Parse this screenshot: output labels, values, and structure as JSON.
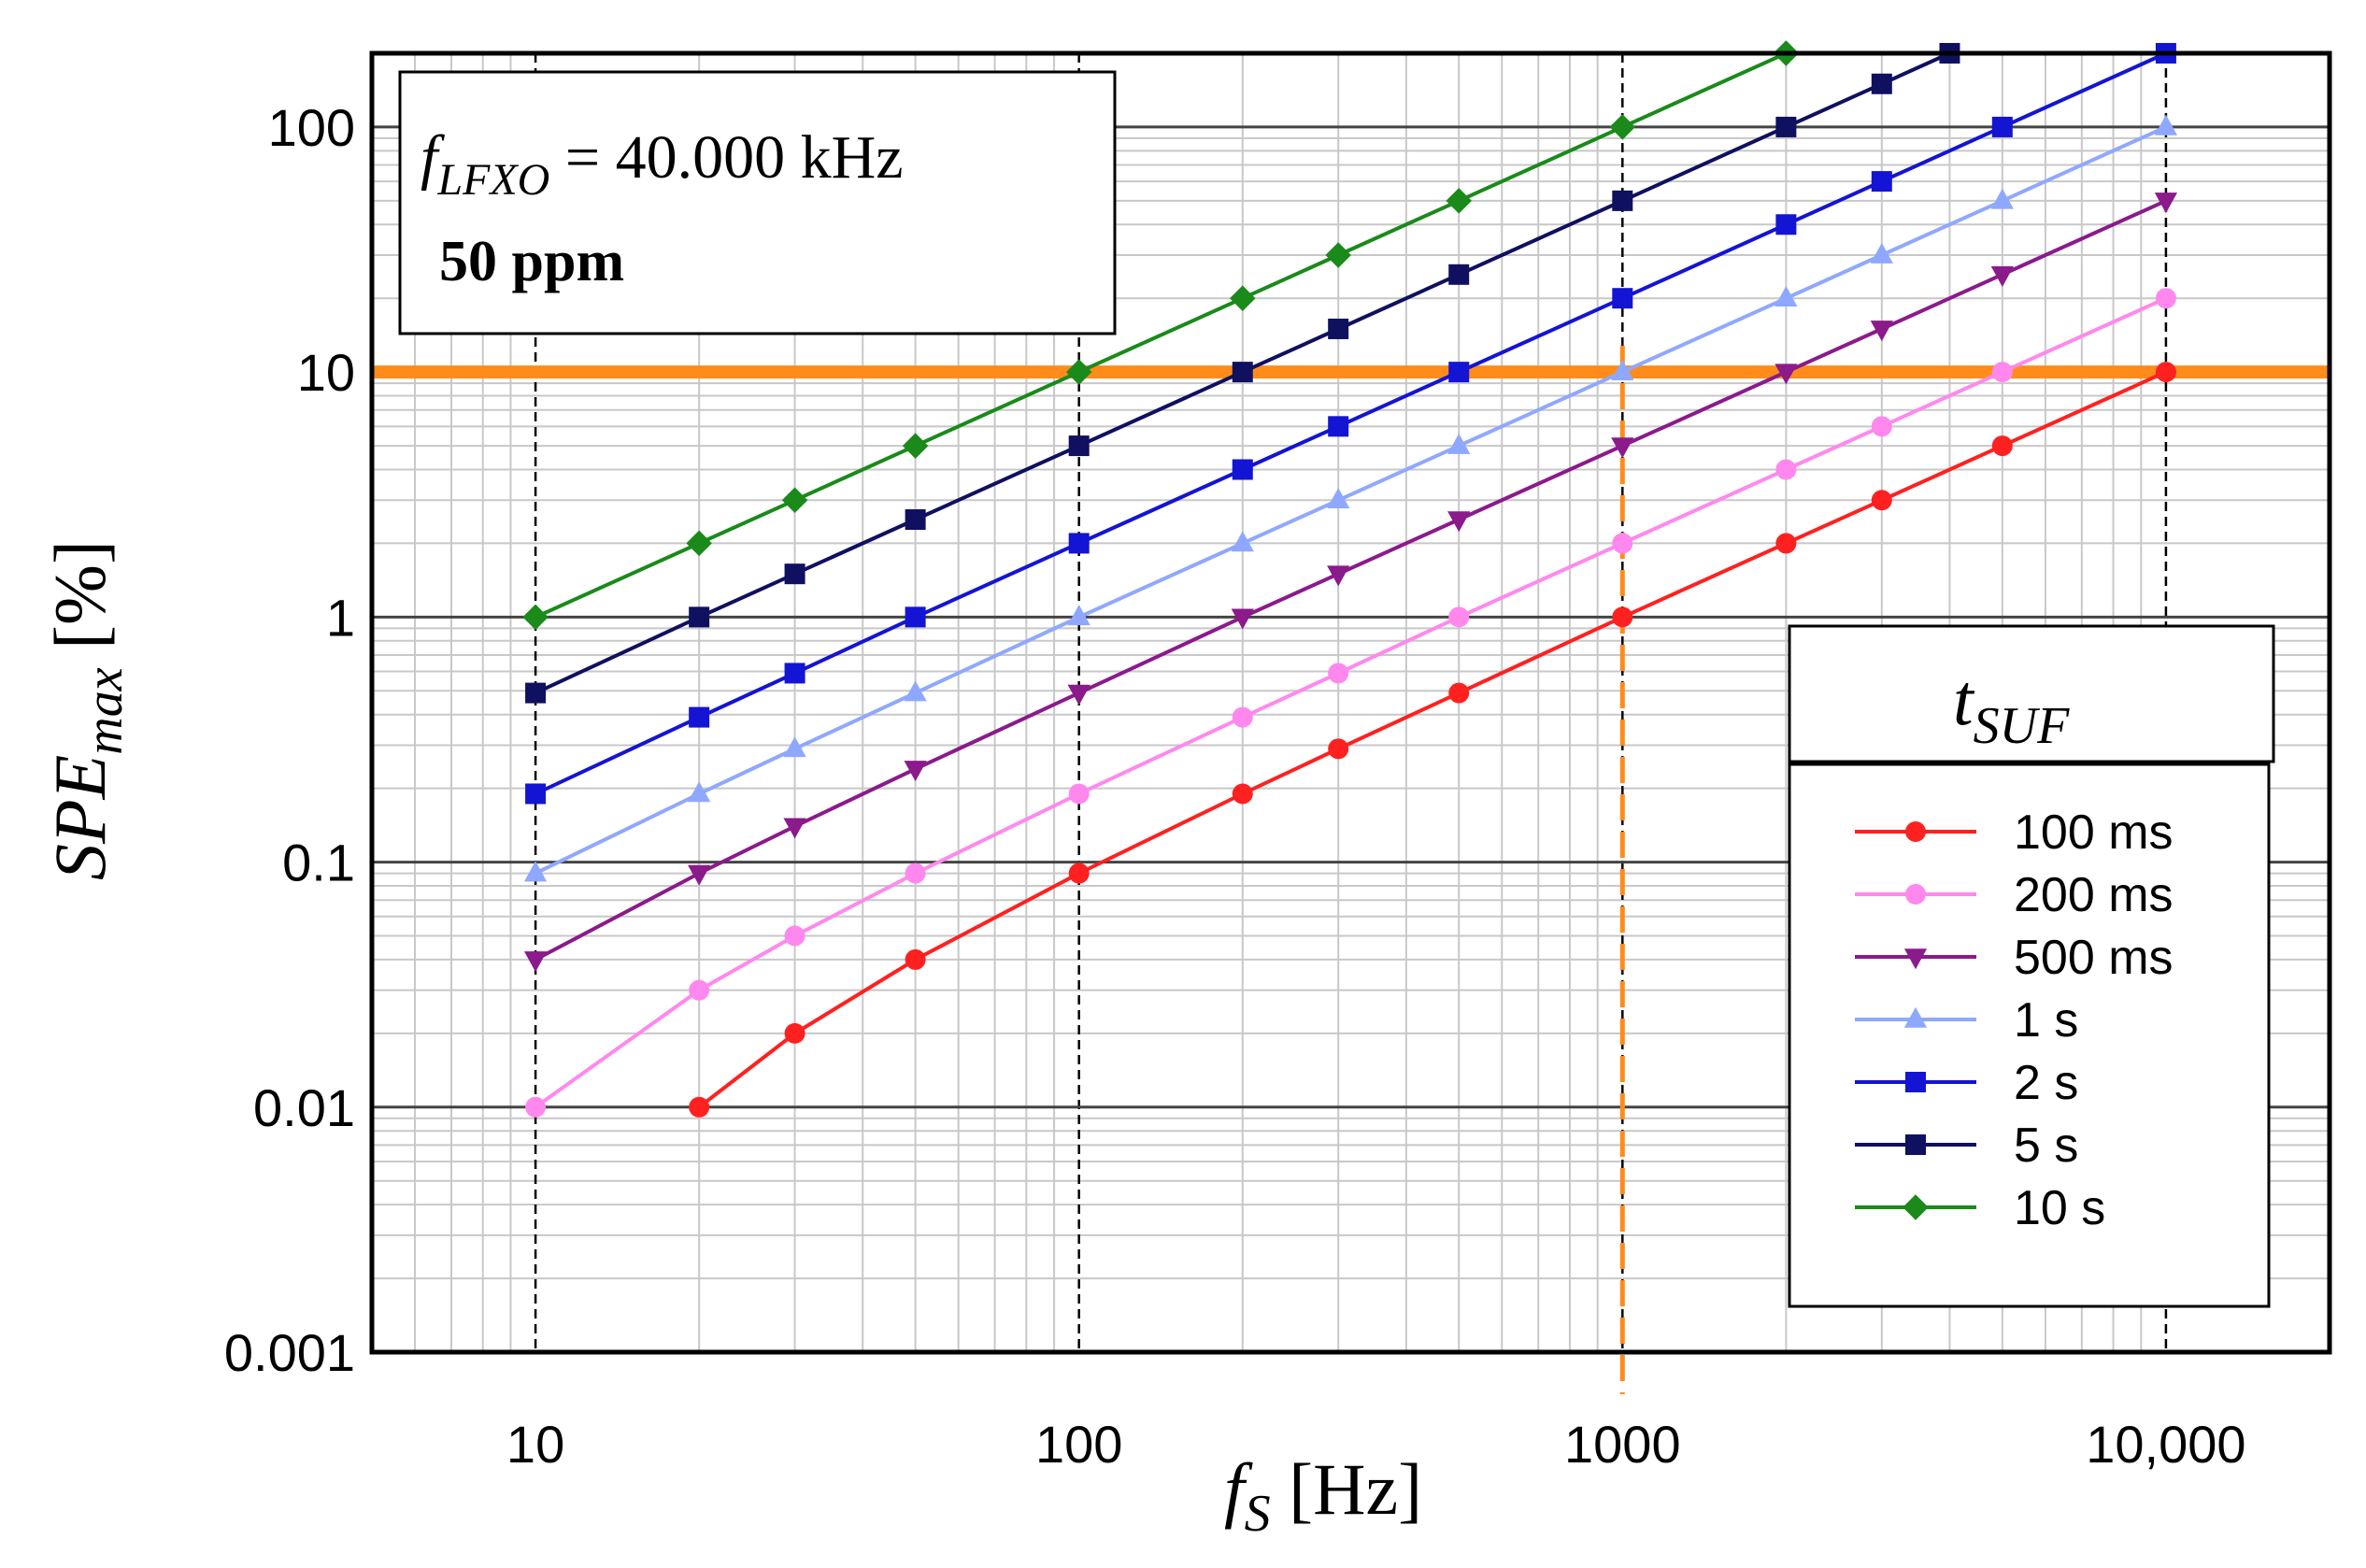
{
  "chart_data": {
    "type": "line",
    "xscale": "log",
    "yscale": "log",
    "xlim": [
      5,
      20000
    ],
    "ylim": [
      0.001,
      200
    ],
    "xticks": [
      10,
      100,
      1000,
      10000
    ],
    "xtick_labels": [
      "10",
      "100",
      "1000",
      "10,000"
    ],
    "yticks": [
      0.001,
      0.01,
      0.1,
      1,
      10,
      100
    ],
    "ytick_labels": [
      "0.001",
      "0.01",
      "0.1",
      "1",
      "10",
      "100"
    ],
    "grid": true,
    "xlabel": {
      "main": "f",
      "sub": "S",
      "unit": " [Hz]"
    },
    "ylabel": {
      "main": "SPE",
      "sub": "max",
      "unit": " [%]"
    },
    "annotation": {
      "line1_var": "f",
      "line1_sub": "LFXO",
      "line1_value": " = 40.000 kHz",
      "line2": "50 ppm"
    },
    "reference_lines": [
      {
        "orientation": "horizontal",
        "value": 10,
        "color": "#ff8c1a",
        "style": "solid"
      },
      {
        "orientation": "vertical",
        "value": 1000,
        "color": "#ff8c1a",
        "style": "dashed"
      }
    ],
    "legend": {
      "title_var": "t",
      "title_sub": "SUF",
      "position": "right"
    },
    "series": [
      {
        "name": "100 ms",
        "color": "#ff2020",
        "marker": "circle",
        "x": [
          20,
          30,
          50,
          100,
          200,
          300,
          500,
          1000,
          2000,
          3000,
          5000,
          10000
        ],
        "y": [
          0.01,
          0.02,
          0.04,
          0.09,
          0.19,
          0.29,
          0.49,
          1,
          2,
          3,
          5,
          10
        ]
      },
      {
        "name": "200 ms",
        "color": "#ff88ee",
        "marker": "circle",
        "x": [
          10,
          20,
          30,
          50,
          100,
          200,
          300,
          500,
          1000,
          2000,
          3000,
          5000,
          10000
        ],
        "y": [
          0.01,
          0.03,
          0.05,
          0.09,
          0.19,
          0.39,
          0.59,
          1,
          2,
          4,
          6,
          10,
          20
        ]
      },
      {
        "name": "500 ms",
        "color": "#8b1a8b",
        "marker": "triangle-down",
        "x": [
          10,
          20,
          30,
          50,
          100,
          200,
          300,
          500,
          1000,
          2000,
          3000,
          5000,
          10000
        ],
        "y": [
          0.04,
          0.09,
          0.14,
          0.24,
          0.49,
          1,
          1.5,
          2.5,
          5,
          10,
          15,
          25,
          50
        ]
      },
      {
        "name": "1 s",
        "color": "#8fa8ff",
        "marker": "triangle-up",
        "x": [
          10,
          20,
          30,
          50,
          100,
          200,
          300,
          500,
          1000,
          2000,
          3000,
          5000,
          10000
        ],
        "y": [
          0.09,
          0.19,
          0.29,
          0.49,
          1,
          2,
          3,
          5,
          10,
          20,
          30,
          50,
          100
        ]
      },
      {
        "name": "2 s",
        "color": "#1414d4",
        "marker": "square",
        "x": [
          10,
          20,
          30,
          50,
          100,
          200,
          300,
          500,
          1000,
          2000,
          3000,
          5000,
          10000
        ],
        "y": [
          0.19,
          0.39,
          0.59,
          1,
          2,
          4,
          6,
          10,
          20,
          40,
          60,
          100,
          200
        ]
      },
      {
        "name": "5 s",
        "color": "#101060",
        "marker": "square",
        "x": [
          10,
          20,
          30,
          50,
          100,
          200,
          300,
          500,
          1000,
          2000,
          3000,
          4000
        ],
        "y": [
          0.49,
          1,
          1.5,
          2.5,
          5,
          10,
          15,
          25,
          50,
          100,
          150,
          200
        ]
      },
      {
        "name": "10 s",
        "color": "#1a8a1a",
        "marker": "diamond",
        "x": [
          10,
          20,
          30,
          50,
          100,
          200,
          300,
          500,
          1000,
          2000
        ],
        "y": [
          1,
          2,
          3,
          5,
          10,
          20,
          30,
          50,
          100,
          200
        ]
      }
    ]
  }
}
